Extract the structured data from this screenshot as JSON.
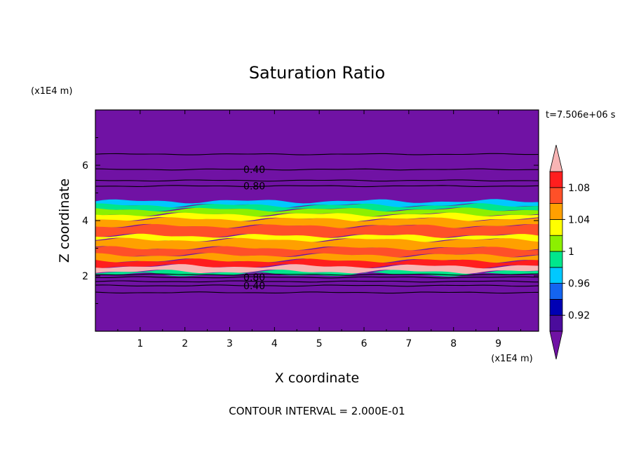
{
  "chart_data": {
    "type": "heatmap",
    "title": "Saturation Ratio",
    "xlabel": "X coordinate",
    "ylabel": "Z coordinate",
    "x_unit": "(x1E4 m)",
    "y_unit": "(x1E4 m)",
    "time_label": "t=7.506e+06 s",
    "footer": "CONTOUR INTERVAL = 2.000E-01",
    "xlim": [
      0,
      9.9
    ],
    "ylim": [
      0,
      8
    ],
    "x_ticks": [
      "1",
      "2",
      "3",
      "4",
      "5",
      "6",
      "7",
      "8",
      "9"
    ],
    "y_ticks": [
      "2",
      "4",
      "6"
    ],
    "colorbar": {
      "levels": [
        0.9,
        0.92,
        0.94,
        0.96,
        0.98,
        1.0,
        1.02,
        1.04,
        1.06,
        1.08,
        1.1
      ],
      "colors": [
        "#4b0c9c",
        "#0000b4",
        "#1464f0",
        "#00c8ff",
        "#00e68c",
        "#8cf000",
        "#ffff00",
        "#ffa000",
        "#ff5028",
        "#ff1e1e"
      ],
      "under_color": "#7012a4",
      "over_color": "#f8b4b4",
      "tick_labels": [
        {
          "level": 0.92,
          "label": "0.92"
        },
        {
          "level": 0.96,
          "label": "0.96"
        },
        {
          "level": 1.0,
          "label": "1"
        },
        {
          "level": 1.04,
          "label": "1.04"
        },
        {
          "level": 1.08,
          "label": "1.08"
        }
      ]
    },
    "colors": {
      "background": "#7012a4",
      "line": "#000000"
    },
    "contour_labels": [
      {
        "text": "0.40",
        "x": 3.55,
        "z": 5.85
      },
      {
        "text": "0.80",
        "x": 3.55,
        "z": 5.25
      },
      {
        "text": "0.80",
        "x": 3.55,
        "z": 1.95
      },
      {
        "text": "0.40",
        "x": 3.55,
        "z": 1.65
      }
    ],
    "contour_levels_z": [
      6.4,
      5.85,
      5.45,
      5.25,
      2.05,
      1.95,
      1.8,
      1.65,
      1.4
    ],
    "bands": [
      {
        "z0": 4.7,
        "z1": 4.55,
        "color": "#00c8ff"
      },
      {
        "z0": 4.55,
        "z1": 4.4,
        "color": "#00e68c"
      },
      {
        "z0": 4.4,
        "z1": 4.22,
        "color": "#8cf000"
      },
      {
        "z0": 4.22,
        "z1": 4.05,
        "color": "#ffff00"
      },
      {
        "z0": 4.05,
        "z1": 3.8,
        "color": "#ffa000"
      },
      {
        "z0": 3.8,
        "z1": 3.45,
        "color": "#ff5028"
      },
      {
        "z0": 3.45,
        "z1": 3.3,
        "color": "#ffff00"
      },
      {
        "z0": 3.3,
        "z1": 3.0,
        "color": "#ffa000"
      },
      {
        "z0": 3.0,
        "z1": 2.75,
        "color": "#ff5028"
      },
      {
        "z0": 2.75,
        "z1": 2.55,
        "color": "#ffa000"
      },
      {
        "z0": 2.55,
        "z1": 2.35,
        "color": "#ff1e1e"
      },
      {
        "z0": 2.35,
        "z1": 2.15,
        "color": "#f8b4b4"
      },
      {
        "z0": 2.15,
        "z1": 2.05,
        "color": "#00e68c"
      }
    ]
  }
}
